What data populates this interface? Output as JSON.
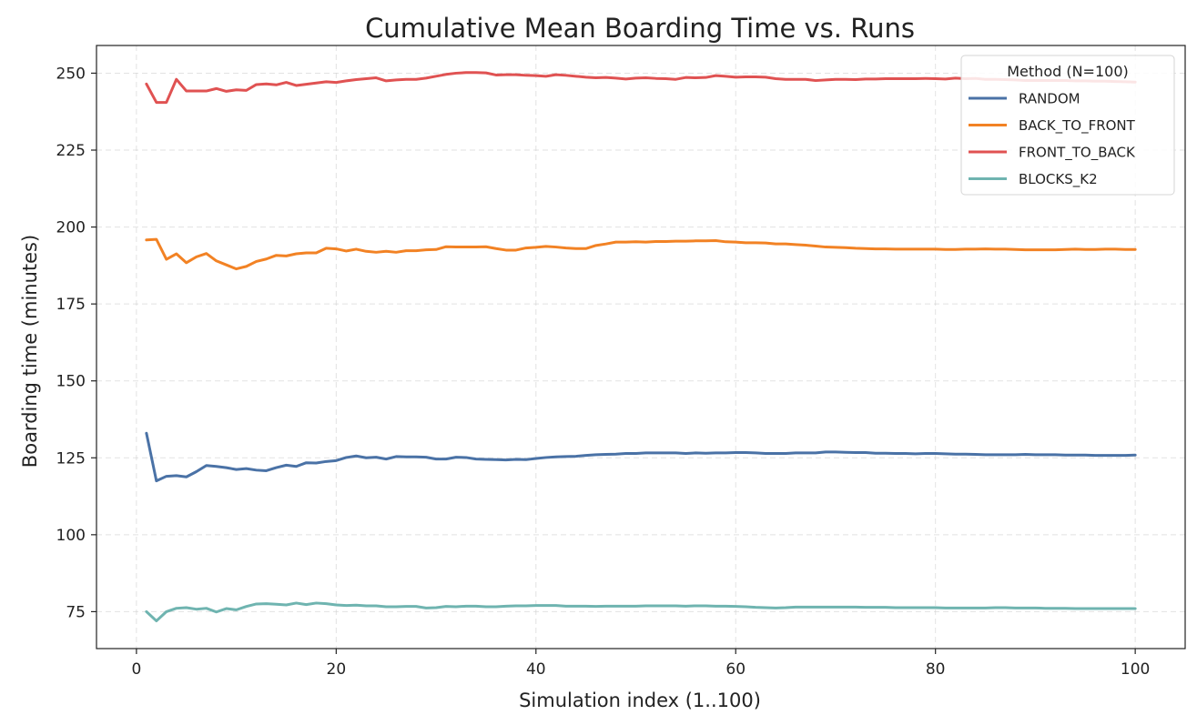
{
  "chart_data": {
    "type": "line",
    "title": "Cumulative Mean Boarding Time vs. Runs",
    "xlabel": "Simulation index (1..100)",
    "ylabel": "Boarding time (minutes)",
    "xlim": [
      -4,
      105
    ],
    "ylim": [
      63,
      259
    ],
    "xticks": [
      0,
      20,
      40,
      60,
      80,
      100
    ],
    "yticks": [
      75,
      100,
      125,
      150,
      175,
      200,
      225,
      250
    ],
    "grid": true,
    "legend": {
      "title": "Method (N=100)",
      "placement": "top-right"
    },
    "x": [
      1,
      2,
      3,
      4,
      5,
      6,
      7,
      8,
      9,
      10,
      11,
      12,
      13,
      14,
      15,
      16,
      17,
      18,
      19,
      20,
      21,
      22,
      23,
      24,
      25,
      26,
      27,
      28,
      29,
      30,
      31,
      32,
      33,
      34,
      35,
      36,
      37,
      38,
      39,
      40,
      41,
      42,
      43,
      44,
      45,
      46,
      47,
      48,
      49,
      50,
      51,
      52,
      53,
      54,
      55,
      56,
      57,
      58,
      59,
      60,
      61,
      62,
      63,
      64,
      65,
      66,
      67,
      68,
      69,
      70,
      71,
      72,
      73,
      74,
      75,
      76,
      77,
      78,
      79,
      80,
      81,
      82,
      83,
      84,
      85,
      86,
      87,
      88,
      89,
      90,
      91,
      92,
      93,
      94,
      95,
      96,
      97,
      98,
      99,
      100
    ],
    "series": [
      {
        "name": "RANDOM",
        "color": "#4a72a6",
        "values": [
          133,
          117.5,
          119,
          119.2,
          118.8,
          120.5,
          122.5,
          122.2,
          121.8,
          121.2,
          121.5,
          121,
          120.8,
          121.8,
          122.6,
          122.2,
          123.4,
          123.3,
          123.8,
          124.1,
          125.1,
          125.6,
          125,
          125.2,
          124.6,
          125.4,
          125.3,
          125.3,
          125.2,
          124.6,
          124.6,
          125.2,
          125.1,
          124.6,
          124.5,
          124.4,
          124.3,
          124.5,
          124.4,
          124.8,
          125.1,
          125.3,
          125.4,
          125.5,
          125.8,
          126,
          126.1,
          126.2,
          126.4,
          126.4,
          126.6,
          126.6,
          126.6,
          126.6,
          126.4,
          126.6,
          126.5,
          126.6,
          126.6,
          126.7,
          126.7,
          126.6,
          126.4,
          126.4,
          126.4,
          126.6,
          126.6,
          126.6,
          126.9,
          126.9,
          126.8,
          126.7,
          126.7,
          126.5,
          126.5,
          126.4,
          126.4,
          126.3,
          126.4,
          126.4,
          126.3,
          126.2,
          126.2,
          126.1,
          126,
          126,
          126,
          126,
          126.1,
          126,
          126,
          126,
          125.9,
          125.9,
          125.9,
          125.8,
          125.8,
          125.8,
          125.8,
          125.9
        ]
      },
      {
        "name": "BACK_TO_FRONT",
        "color": "#f28224",
        "values": [
          195.8,
          196,
          189.5,
          191.3,
          188.4,
          190.3,
          191.4,
          189,
          187.7,
          186.4,
          187.2,
          188.8,
          189.6,
          190.8,
          190.6,
          191.3,
          191.6,
          191.6,
          193.1,
          192.9,
          192.2,
          192.8,
          192.1,
          191.8,
          192.1,
          191.8,
          192.3,
          192.3,
          192.6,
          192.7,
          193.6,
          193.5,
          193.5,
          193.5,
          193.6,
          193,
          192.5,
          192.5,
          193.2,
          193.4,
          193.7,
          193.5,
          193.2,
          193,
          193,
          194,
          194.5,
          195.1,
          195.1,
          195.2,
          195.1,
          195.3,
          195.3,
          195.4,
          195.4,
          195.5,
          195.5,
          195.6,
          195.2,
          195.1,
          194.9,
          194.9,
          194.8,
          194.5,
          194.5,
          194.3,
          194.1,
          193.8,
          193.5,
          193.4,
          193.3,
          193.1,
          193,
          192.9,
          192.9,
          192.8,
          192.8,
          192.8,
          192.8,
          192.8,
          192.7,
          192.7,
          192.8,
          192.8,
          192.9,
          192.8,
          192.8,
          192.7,
          192.6,
          192.6,
          192.6,
          192.6,
          192.7,
          192.8,
          192.7,
          192.7,
          192.8,
          192.8,
          192.7,
          192.7
        ]
      },
      {
        "name": "FRONT_TO_BACK",
        "color": "#e05252",
        "values": [
          246.5,
          240.5,
          240.5,
          248,
          244.2,
          244.2,
          244.2,
          245,
          244.1,
          244.6,
          244.4,
          246.3,
          246.5,
          246.2,
          247,
          246,
          246.4,
          246.8,
          247.2,
          247,
          247.5,
          247.9,
          248.2,
          248.5,
          247.5,
          247.8,
          248,
          248,
          248.4,
          249,
          249.6,
          250,
          250.2,
          250.2,
          250.1,
          249.4,
          249.5,
          249.5,
          249.3,
          249.2,
          249,
          249.5,
          249.3,
          249,
          248.7,
          248.5,
          248.6,
          248.4,
          248.1,
          248.4,
          248.5,
          248.3,
          248.2,
          248,
          248.6,
          248.5,
          248.6,
          249.2,
          249,
          248.7,
          248.8,
          248.8,
          248.7,
          248.2,
          248,
          248,
          248,
          247.6,
          247.8,
          248,
          248,
          247.9,
          248.1,
          248.1,
          248.2,
          248.2,
          248.2,
          248.2,
          248.3,
          248.2,
          248.1,
          248.4,
          248.2,
          248.3,
          248,
          248,
          247.9,
          247.8,
          247.6,
          247.6,
          247.6,
          247.6,
          247.6,
          247.5,
          247.5,
          247.4,
          247.4,
          247.3,
          247.2,
          247.1
        ]
      },
      {
        "name": "BLOCKS_K2",
        "color": "#6fb4b0",
        "values": [
          75,
          72,
          75,
          76.1,
          76.3,
          75.8,
          76.1,
          74.9,
          76,
          75.6,
          76.7,
          77.5,
          77.6,
          77.4,
          77.2,
          77.8,
          77.3,
          77.8,
          77.6,
          77.2,
          77,
          77.1,
          76.9,
          76.9,
          76.6,
          76.6,
          76.7,
          76.7,
          76.2,
          76.3,
          76.7,
          76.6,
          76.8,
          76.8,
          76.6,
          76.6,
          76.8,
          76.9,
          76.9,
          77,
          77,
          77,
          76.8,
          76.8,
          76.8,
          76.7,
          76.8,
          76.8,
          76.8,
          76.8,
          76.9,
          76.9,
          76.9,
          76.9,
          76.8,
          76.9,
          76.9,
          76.8,
          76.8,
          76.7,
          76.6,
          76.4,
          76.3,
          76.2,
          76.3,
          76.5,
          76.5,
          76.5,
          76.5,
          76.5,
          76.5,
          76.5,
          76.4,
          76.4,
          76.4,
          76.3,
          76.3,
          76.3,
          76.3,
          76.3,
          76.2,
          76.2,
          76.2,
          76.2,
          76.2,
          76.3,
          76.3,
          76.2,
          76.2,
          76.2,
          76.1,
          76.1,
          76.1,
          76,
          76,
          76,
          76,
          76,
          76,
          76
        ]
      }
    ]
  }
}
